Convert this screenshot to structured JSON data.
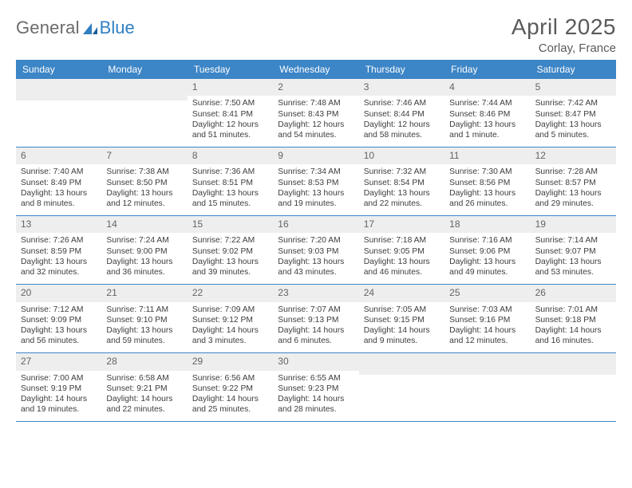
{
  "brand": {
    "part1": "General",
    "part2": "Blue"
  },
  "title": "April 2025",
  "location": "Corlay, France",
  "dayHeaders": [
    "Sunday",
    "Monday",
    "Tuesday",
    "Wednesday",
    "Thursday",
    "Friday",
    "Saturday"
  ],
  "colors": {
    "headerBar": "#3c85c6",
    "dayNumBg": "#eeeeee",
    "text": "#3d3d3d",
    "brandGray": "#6b6b6b",
    "brandBlue": "#2f7fc2"
  },
  "weeks": [
    [
      {
        "n": "",
        "sr": "",
        "ss": "",
        "dl": ""
      },
      {
        "n": "",
        "sr": "",
        "ss": "",
        "dl": ""
      },
      {
        "n": "1",
        "sr": "Sunrise: 7:50 AM",
        "ss": "Sunset: 8:41 PM",
        "dl": "Daylight: 12 hours and 51 minutes."
      },
      {
        "n": "2",
        "sr": "Sunrise: 7:48 AM",
        "ss": "Sunset: 8:43 PM",
        "dl": "Daylight: 12 hours and 54 minutes."
      },
      {
        "n": "3",
        "sr": "Sunrise: 7:46 AM",
        "ss": "Sunset: 8:44 PM",
        "dl": "Daylight: 12 hours and 58 minutes."
      },
      {
        "n": "4",
        "sr": "Sunrise: 7:44 AM",
        "ss": "Sunset: 8:46 PM",
        "dl": "Daylight: 13 hours and 1 minute."
      },
      {
        "n": "5",
        "sr": "Sunrise: 7:42 AM",
        "ss": "Sunset: 8:47 PM",
        "dl": "Daylight: 13 hours and 5 minutes."
      }
    ],
    [
      {
        "n": "6",
        "sr": "Sunrise: 7:40 AM",
        "ss": "Sunset: 8:49 PM",
        "dl": "Daylight: 13 hours and 8 minutes."
      },
      {
        "n": "7",
        "sr": "Sunrise: 7:38 AM",
        "ss": "Sunset: 8:50 PM",
        "dl": "Daylight: 13 hours and 12 minutes."
      },
      {
        "n": "8",
        "sr": "Sunrise: 7:36 AM",
        "ss": "Sunset: 8:51 PM",
        "dl": "Daylight: 13 hours and 15 minutes."
      },
      {
        "n": "9",
        "sr": "Sunrise: 7:34 AM",
        "ss": "Sunset: 8:53 PM",
        "dl": "Daylight: 13 hours and 19 minutes."
      },
      {
        "n": "10",
        "sr": "Sunrise: 7:32 AM",
        "ss": "Sunset: 8:54 PM",
        "dl": "Daylight: 13 hours and 22 minutes."
      },
      {
        "n": "11",
        "sr": "Sunrise: 7:30 AM",
        "ss": "Sunset: 8:56 PM",
        "dl": "Daylight: 13 hours and 26 minutes."
      },
      {
        "n": "12",
        "sr": "Sunrise: 7:28 AM",
        "ss": "Sunset: 8:57 PM",
        "dl": "Daylight: 13 hours and 29 minutes."
      }
    ],
    [
      {
        "n": "13",
        "sr": "Sunrise: 7:26 AM",
        "ss": "Sunset: 8:59 PM",
        "dl": "Daylight: 13 hours and 32 minutes."
      },
      {
        "n": "14",
        "sr": "Sunrise: 7:24 AM",
        "ss": "Sunset: 9:00 PM",
        "dl": "Daylight: 13 hours and 36 minutes."
      },
      {
        "n": "15",
        "sr": "Sunrise: 7:22 AM",
        "ss": "Sunset: 9:02 PM",
        "dl": "Daylight: 13 hours and 39 minutes."
      },
      {
        "n": "16",
        "sr": "Sunrise: 7:20 AM",
        "ss": "Sunset: 9:03 PM",
        "dl": "Daylight: 13 hours and 43 minutes."
      },
      {
        "n": "17",
        "sr": "Sunrise: 7:18 AM",
        "ss": "Sunset: 9:05 PM",
        "dl": "Daylight: 13 hours and 46 minutes."
      },
      {
        "n": "18",
        "sr": "Sunrise: 7:16 AM",
        "ss": "Sunset: 9:06 PM",
        "dl": "Daylight: 13 hours and 49 minutes."
      },
      {
        "n": "19",
        "sr": "Sunrise: 7:14 AM",
        "ss": "Sunset: 9:07 PM",
        "dl": "Daylight: 13 hours and 53 minutes."
      }
    ],
    [
      {
        "n": "20",
        "sr": "Sunrise: 7:12 AM",
        "ss": "Sunset: 9:09 PM",
        "dl": "Daylight: 13 hours and 56 minutes."
      },
      {
        "n": "21",
        "sr": "Sunrise: 7:11 AM",
        "ss": "Sunset: 9:10 PM",
        "dl": "Daylight: 13 hours and 59 minutes."
      },
      {
        "n": "22",
        "sr": "Sunrise: 7:09 AM",
        "ss": "Sunset: 9:12 PM",
        "dl": "Daylight: 14 hours and 3 minutes."
      },
      {
        "n": "23",
        "sr": "Sunrise: 7:07 AM",
        "ss": "Sunset: 9:13 PM",
        "dl": "Daylight: 14 hours and 6 minutes."
      },
      {
        "n": "24",
        "sr": "Sunrise: 7:05 AM",
        "ss": "Sunset: 9:15 PM",
        "dl": "Daylight: 14 hours and 9 minutes."
      },
      {
        "n": "25",
        "sr": "Sunrise: 7:03 AM",
        "ss": "Sunset: 9:16 PM",
        "dl": "Daylight: 14 hours and 12 minutes."
      },
      {
        "n": "26",
        "sr": "Sunrise: 7:01 AM",
        "ss": "Sunset: 9:18 PM",
        "dl": "Daylight: 14 hours and 16 minutes."
      }
    ],
    [
      {
        "n": "27",
        "sr": "Sunrise: 7:00 AM",
        "ss": "Sunset: 9:19 PM",
        "dl": "Daylight: 14 hours and 19 minutes."
      },
      {
        "n": "28",
        "sr": "Sunrise: 6:58 AM",
        "ss": "Sunset: 9:21 PM",
        "dl": "Daylight: 14 hours and 22 minutes."
      },
      {
        "n": "29",
        "sr": "Sunrise: 6:56 AM",
        "ss": "Sunset: 9:22 PM",
        "dl": "Daylight: 14 hours and 25 minutes."
      },
      {
        "n": "30",
        "sr": "Sunrise: 6:55 AM",
        "ss": "Sunset: 9:23 PM",
        "dl": "Daylight: 14 hours and 28 minutes."
      },
      {
        "n": "",
        "sr": "",
        "ss": "",
        "dl": ""
      },
      {
        "n": "",
        "sr": "",
        "ss": "",
        "dl": ""
      },
      {
        "n": "",
        "sr": "",
        "ss": "",
        "dl": ""
      }
    ]
  ]
}
